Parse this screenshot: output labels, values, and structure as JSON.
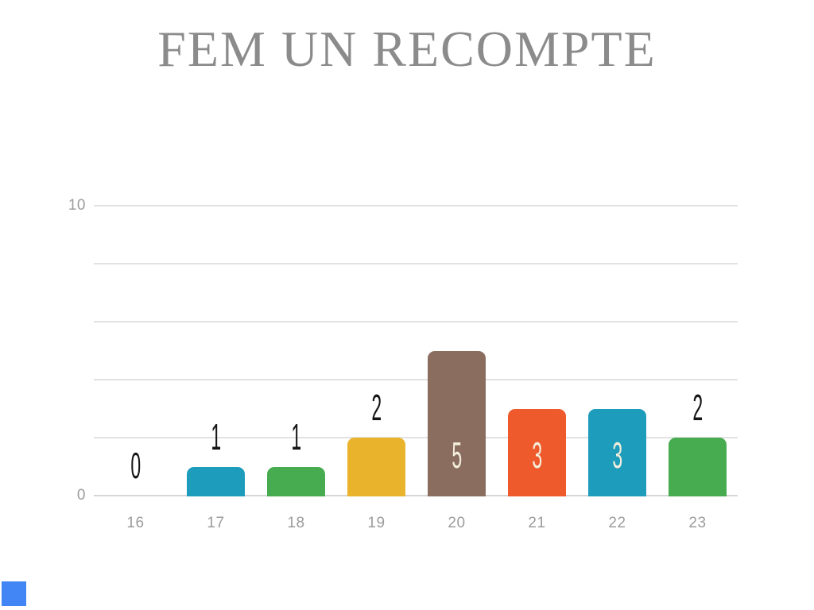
{
  "slide": {
    "title": "FEM UN RECOMPTE"
  },
  "colors": {
    "background": "#FFFFFF",
    "title_text": "#8B8B8B",
    "axis_text": "#9C9C9C",
    "gridline": "#E2E2E2",
    "baseline": "#D6D6D6",
    "value_label_outside": "#151515",
    "value_label_inside": "#F3EEDC",
    "accent_square": "#4285F4"
  },
  "chart_data": {
    "type": "bar",
    "title": "FEM UN RECOMPTE",
    "categories": [
      "16",
      "17",
      "18",
      "19",
      "20",
      "21",
      "22",
      "23"
    ],
    "values": [
      0,
      1,
      1,
      2,
      5,
      3,
      3,
      2
    ],
    "data_labels": [
      "0",
      "1",
      "1",
      "2",
      "5",
      "3",
      "3",
      "2"
    ],
    "bar_colors": [
      "#EF5A2C",
      "#1D9CBB",
      "#47AB4F",
      "#E9B32B",
      "#8A6D5F",
      "#EF5A2C",
      "#1D9CBB",
      "#47AB4F"
    ],
    "label_inside_min_value": 3,
    "xlabel": "",
    "ylabel": "",
    "ylim": [
      0,
      10
    ],
    "y_gridline_step": 2,
    "y_ticks_labeled": [
      {
        "value": 10,
        "label": "10"
      },
      {
        "value": 0,
        "label": "0"
      }
    ],
    "grid": "horizontal",
    "legend": "none"
  }
}
